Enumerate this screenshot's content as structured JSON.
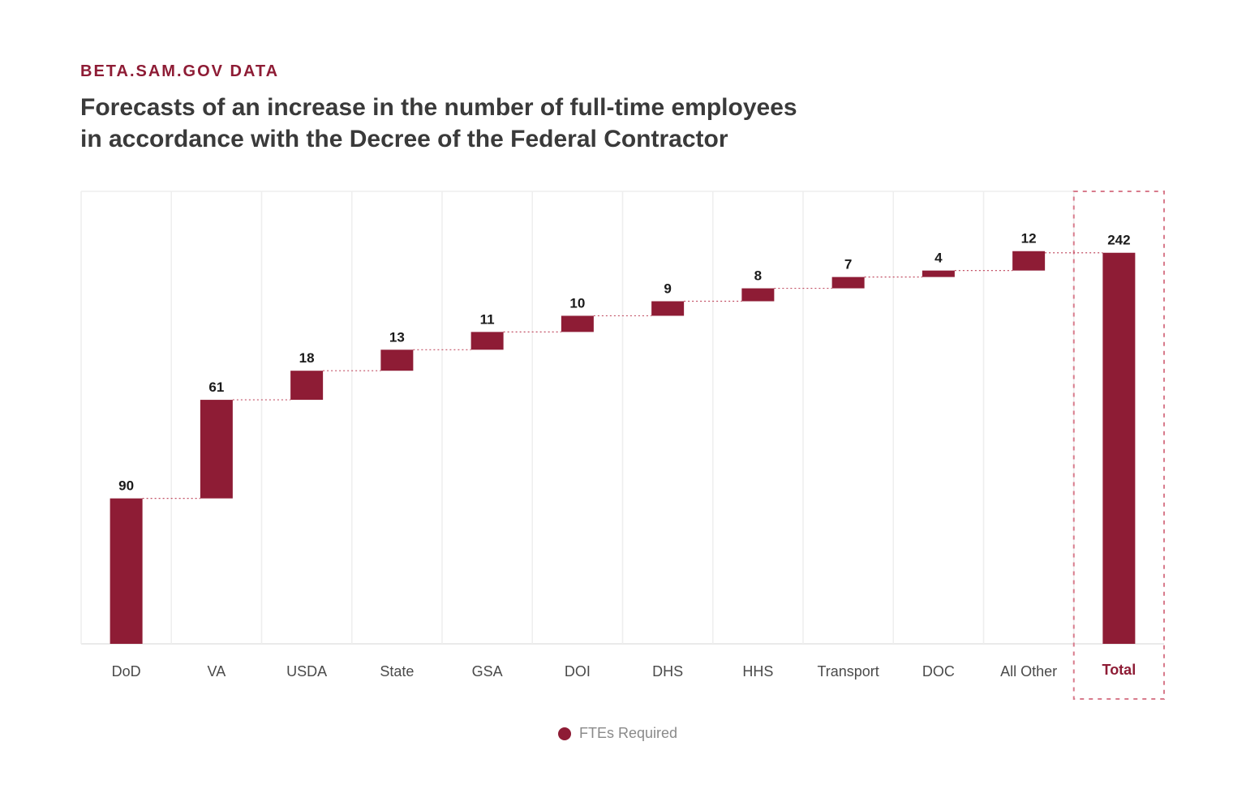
{
  "header": {
    "source_label": "BETA.SAM.GOV DATA",
    "title_line1": "Forecasts of an increase in the number of full-time employees",
    "title_line2": "in accordance with the Decree of the Federal Contractor"
  },
  "legend": {
    "label": "FTEs Required"
  },
  "colors": {
    "bar": "#8e1c35",
    "accent_text": "#8e1c35",
    "grid": "#eeeeee",
    "connector": "#c25065",
    "highlight_border": "#d87b8c"
  },
  "chart_data": {
    "type": "bar",
    "subtype": "waterfall",
    "categories": [
      "DoD",
      "VA",
      "USDA",
      "State",
      "GSA",
      "DOI",
      "DHS",
      "HHS",
      "Transport",
      "DOC",
      "All Other",
      "Total"
    ],
    "series": [
      {
        "name": "FTEs Required",
        "values": [
          90,
          61,
          18,
          13,
          11,
          10,
          9,
          8,
          7,
          4,
          12,
          242
        ]
      }
    ],
    "total_category": "Total",
    "ylim": [
      0,
      280
    ],
    "grid": "vertical",
    "legend_position": "bottom-center",
    "data_labels": true
  }
}
